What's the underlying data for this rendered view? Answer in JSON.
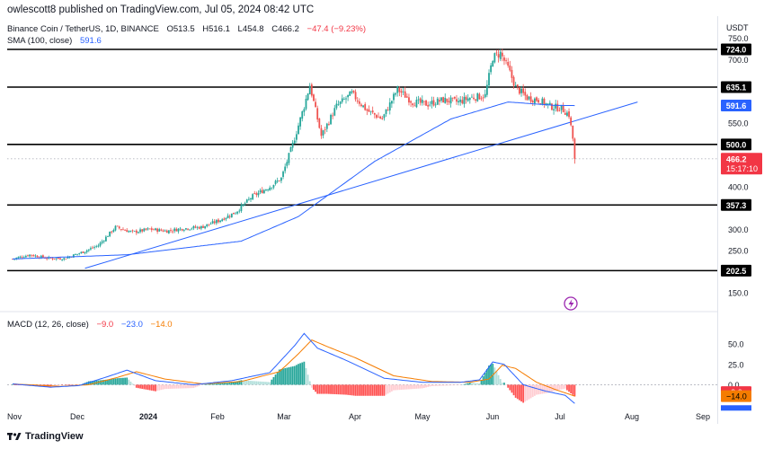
{
  "header": {
    "text": "owlescott8 published on TradingView.com, Jul 05, 2024 08:42 UTC"
  },
  "legend": {
    "symbol": "Binance Coin / TetherUS, 1D, BINANCE",
    "ohlc": {
      "o": "O513.5",
      "h": "H516.1",
      "l": "L454.8",
      "c": "C466.2",
      "change": "−47.4 (−9.23%)"
    },
    "sma_label": "SMA (100, close)",
    "sma_value": "591.6"
  },
  "macd_legend": {
    "label": "MACD (12, 26, close)",
    "hist": "−9.0",
    "macd": "−23.0",
    "signal": "−14.0"
  },
  "currency": "USDT",
  "brand": "TradingView",
  "colors": {
    "up": "#26a69a",
    "down": "#ef5350",
    "sma": "#2962ff",
    "signal": "#f57c00",
    "level": "#000000"
  },
  "chart_data": [
    {
      "type": "candlestick",
      "x_labels": [
        "Nov",
        "Dec",
        "2024",
        "Feb",
        "Mar",
        "Apr",
        "May",
        "Jun",
        "Jul",
        "Aug",
        "Sep"
      ],
      "y_ticks": [
        "750.0",
        "700.0",
        "550.0",
        "400.0",
        "300.0",
        "250.0",
        "150.0"
      ],
      "ylim": [
        125,
        760
      ],
      "levels": [
        724.0,
        635.1,
        500.0,
        357.3,
        202.5
      ],
      "level_labels": [
        "724.0",
        "635.1",
        "500.0",
        "357.3",
        "202.5"
      ],
      "last_price": 466.2,
      "last_price_label": "466.2",
      "countdown": "15:17:10",
      "sma_label_value": "591.6",
      "sma_value": 591.6,
      "anchors": [
        [
          0,
          230
        ],
        [
          9,
          240
        ],
        [
          18,
          232
        ],
        [
          27,
          231
        ],
        [
          36,
          245
        ],
        [
          45,
          262
        ],
        [
          54,
          305
        ],
        [
          63,
          293
        ],
        [
          72,
          300
        ],
        [
          81,
          296
        ],
        [
          90,
          302
        ],
        [
          99,
          305
        ],
        [
          108,
          320
        ],
        [
          117,
          340
        ],
        [
          126,
          378
        ],
        [
          135,
          400
        ],
        [
          141,
          420
        ],
        [
          147,
          500
        ],
        [
          153,
          590
        ],
        [
          156,
          640
        ],
        [
          162,
          520
        ],
        [
          170,
          590
        ],
        [
          178,
          620
        ],
        [
          186,
          580
        ],
        [
          194,
          560
        ],
        [
          202,
          630
        ],
        [
          210,
          600
        ],
        [
          218,
          595
        ],
        [
          226,
          605
        ],
        [
          234,
          600
        ],
        [
          240,
          610
        ],
        [
          248,
          615
        ],
        [
          252,
          705
        ],
        [
          256,
          715
        ],
        [
          260,
          680
        ],
        [
          264,
          635
        ],
        [
          270,
          610
        ],
        [
          276,
          605
        ],
        [
          282,
          590
        ],
        [
          288,
          585
        ],
        [
          292,
          570
        ],
        [
          294,
          513.5
        ],
        [
          295,
          466.2
        ]
      ],
      "sma_anchors": [
        [
          0,
          230
        ],
        [
          60,
          240
        ],
        [
          120,
          272
        ],
        [
          150,
          330
        ],
        [
          190,
          460
        ],
        [
          230,
          560
        ],
        [
          260,
          600
        ],
        [
          285,
          592
        ],
        [
          295,
          591.6
        ]
      ],
      "trendline": {
        "from": [
          38,
          208
        ],
        "to": [
          328,
          600
        ]
      }
    },
    {
      "type": "macd",
      "y_ticks": [
        "50.0",
        "25.0",
        "0.0"
      ],
      "ylim": [
        -26,
        70
      ],
      "hist_label": "−9.0",
      "signal_label": "−14.0",
      "macd_anchors": [
        [
          0,
          1
        ],
        [
          20,
          -3
        ],
        [
          35,
          -1
        ],
        [
          50,
          10
        ],
        [
          60,
          18
        ],
        [
          75,
          5
        ],
        [
          95,
          0
        ],
        [
          115,
          5
        ],
        [
          135,
          15
        ],
        [
          148,
          48
        ],
        [
          153,
          63
        ],
        [
          160,
          45
        ],
        [
          175,
          30
        ],
        [
          195,
          8
        ],
        [
          215,
          3
        ],
        [
          235,
          3
        ],
        [
          245,
          6
        ],
        [
          252,
          28
        ],
        [
          258,
          25
        ],
        [
          268,
          0
        ],
        [
          280,
          -8
        ],
        [
          290,
          -13
        ],
        [
          295,
          -23
        ]
      ],
      "signal_anchors": [
        [
          0,
          1
        ],
        [
          25,
          -2
        ],
        [
          40,
          0
        ],
        [
          55,
          9
        ],
        [
          65,
          16
        ],
        [
          80,
          7
        ],
        [
          100,
          1
        ],
        [
          120,
          4
        ],
        [
          140,
          16
        ],
        [
          150,
          38
        ],
        [
          157,
          55
        ],
        [
          165,
          47
        ],
        [
          180,
          33
        ],
        [
          200,
          11
        ],
        [
          220,
          4
        ],
        [
          240,
          3
        ],
        [
          250,
          7
        ],
        [
          257,
          24
        ],
        [
          264,
          20
        ],
        [
          275,
          3
        ],
        [
          285,
          -6
        ],
        [
          295,
          -14
        ]
      ]
    }
  ]
}
